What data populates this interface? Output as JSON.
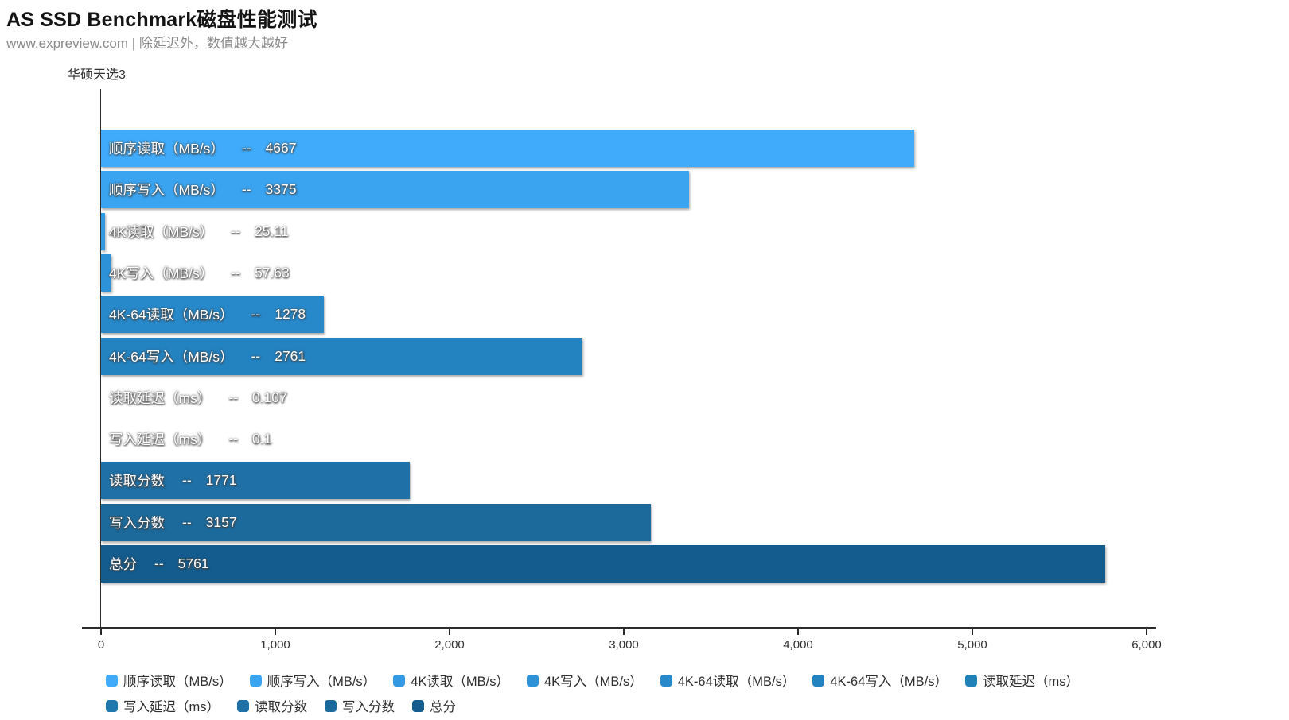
{
  "chart_data": {
    "type": "bar",
    "orientation": "horizontal",
    "title": "AS SSD Benchmark磁盘性能测试",
    "subtitle": "www.expreview.com | 除延迟外，数值越大越好",
    "category_label": "华硕天选3",
    "separator": "--",
    "xlim": [
      0,
      6000
    ],
    "x_ticks": [
      "0",
      "1,000",
      "2,000",
      "3,000",
      "4,000",
      "5,000",
      "6,000"
    ],
    "grid": false,
    "legend_position": "bottom",
    "series": [
      {
        "name": "顺序读取（MB/s）",
        "value": 4667,
        "color": "#3FABFA"
      },
      {
        "name": "顺序写入（MB/s）",
        "value": 3375,
        "color": "#3AA4F0"
      },
      {
        "name": "4K读取（MB/s）",
        "value": 25.11,
        "color": "#3399E3"
      },
      {
        "name": "4K写入（MB/s）",
        "value": 57.63,
        "color": "#2D92D8"
      },
      {
        "name": "4K-64读取（MB/s）",
        "value": 1278,
        "color": "#2789CA"
      },
      {
        "name": "4K-64写入（MB/s）",
        "value": 2761,
        "color": "#2382C0"
      },
      {
        "name": "读取延迟（ms）",
        "value": 0.107,
        "color": "#2080B8"
      },
      {
        "name": "写入延迟（ms）",
        "value": 0.1,
        "color": "#1F79AE"
      },
      {
        "name": "读取分数",
        "value": 1771,
        "color": "#1F70A6"
      },
      {
        "name": "写入分数",
        "value": 3157,
        "color": "#1C6A9C"
      },
      {
        "name": "总分",
        "value": 5761,
        "color": "#145C8E"
      }
    ]
  }
}
